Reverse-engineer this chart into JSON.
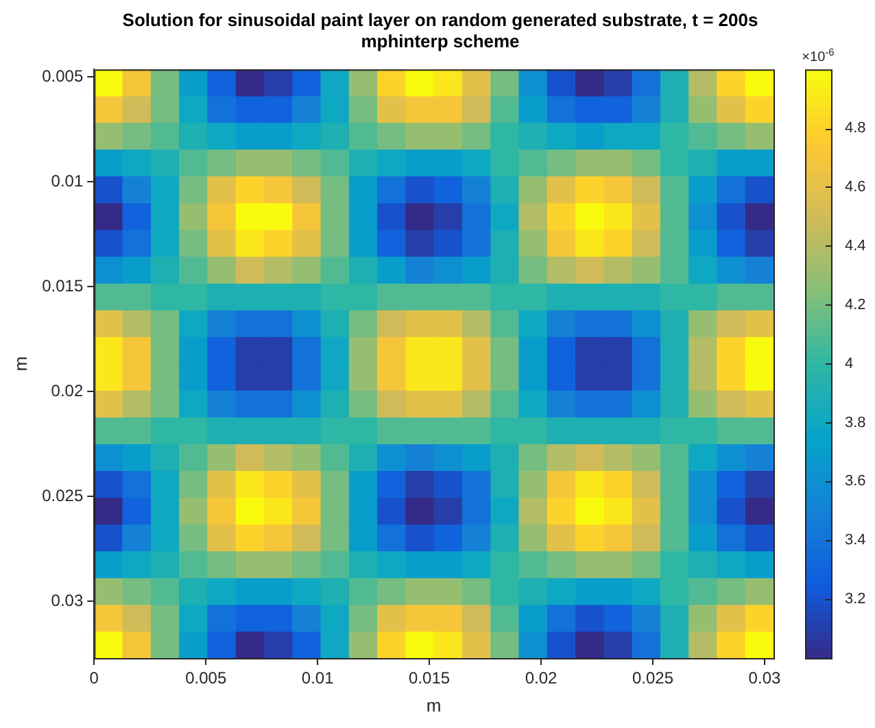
{
  "chart_data": {
    "type": "heatmap",
    "title": "Solution for sinusoidal paint layer on random generated substrate, t = 200s",
    "subtitle": "mphinterp scheme",
    "xlabel": "m",
    "ylabel": "m",
    "clabel": "×10$^{-6}$",
    "x": [
      0.00063,
      0.0019,
      0.00317,
      0.00443,
      0.0057,
      0.00697,
      0.00823,
      0.0095,
      0.01077,
      0.01203,
      0.0133,
      0.01457,
      0.01583,
      0.0171,
      0.01837,
      0.01963,
      0.0209,
      0.02217,
      0.02343,
      0.0247,
      0.02597,
      0.02723,
      0.0285,
      0.02977
    ],
    "y": [
      0.0053,
      0.00655,
      0.00783,
      0.0091,
      0.01038,
      0.01166,
      0.01293,
      0.01421,
      0.01549,
      0.01676,
      0.01804,
      0.01931,
      0.02059,
      0.02187,
      0.02314,
      0.02442,
      0.0257,
      0.02697,
      0.02825,
      0.02953,
      0.0308,
      0.03208
    ],
    "xlim": [
      0,
      0.0304
    ],
    "xticks": [
      0,
      0.005,
      0.01,
      0.015,
      0.02,
      0.025,
      0.03
    ],
    "ylim": [
      0.0327,
      0.00464
    ],
    "yticks": [
      0.005,
      0.01,
      0.015,
      0.02,
      0.025,
      0.03
    ],
    "clim": [
      3.0,
      5.0
    ],
    "cticks": [
      3.2,
      3.4,
      3.6,
      3.8,
      4,
      4.2,
      4.4,
      4.6,
      4.8
    ],
    "cells": [
      [
        5.0,
        4.7,
        4.2,
        3.7,
        3.3,
        3.0,
        3.1,
        3.3,
        3.8,
        4.3,
        4.8,
        5.0,
        4.9,
        4.6,
        4.2,
        3.6,
        3.2,
        3.0,
        3.1,
        3.4,
        3.9,
        4.4,
        4.8,
        5.0
      ],
      [
        4.7,
        4.5,
        4.2,
        3.8,
        3.4,
        3.3,
        3.3,
        3.5,
        3.8,
        4.2,
        4.6,
        4.7,
        4.7,
        4.5,
        4.1,
        3.7,
        3.4,
        3.3,
        3.3,
        3.5,
        3.9,
        4.3,
        4.6,
        4.8
      ],
      [
        4.3,
        4.2,
        4.1,
        3.9,
        3.8,
        3.7,
        3.7,
        3.8,
        3.9,
        4.1,
        4.2,
        4.3,
        4.3,
        4.2,
        4.0,
        3.9,
        3.8,
        3.7,
        3.8,
        3.8,
        4.0,
        4.1,
        4.2,
        4.3
      ],
      [
        3.7,
        3.8,
        3.9,
        4.1,
        4.2,
        4.3,
        4.3,
        4.2,
        4.1,
        3.9,
        3.8,
        3.7,
        3.7,
        3.8,
        4.0,
        4.1,
        4.2,
        4.3,
        4.3,
        4.2,
        4.0,
        3.9,
        3.7,
        3.7
      ],
      [
        3.2,
        3.5,
        3.8,
        4.2,
        4.6,
        4.8,
        4.7,
        4.5,
        4.2,
        3.7,
        3.4,
        3.2,
        3.3,
        3.5,
        3.9,
        4.3,
        4.6,
        4.8,
        4.7,
        4.5,
        4.1,
        3.7,
        3.4,
        3.2
      ],
      [
        3.0,
        3.3,
        3.8,
        4.3,
        4.7,
        5.0,
        5.0,
        4.7,
        4.2,
        3.7,
        3.2,
        3.0,
        3.1,
        3.4,
        3.8,
        4.4,
        4.8,
        5.0,
        4.9,
        4.6,
        4.1,
        3.6,
        3.2,
        3.0
      ],
      [
        3.2,
        3.4,
        3.8,
        4.2,
        4.6,
        4.9,
        4.8,
        4.6,
        4.2,
        3.7,
        3.3,
        3.1,
        3.2,
        3.4,
        3.9,
        4.3,
        4.7,
        4.9,
        4.8,
        4.5,
        4.1,
        3.7,
        3.3,
        3.1
      ],
      [
        3.6,
        3.7,
        3.9,
        4.1,
        4.3,
        4.5,
        4.4,
        4.3,
        4.1,
        3.9,
        3.7,
        3.5,
        3.6,
        3.7,
        3.9,
        4.2,
        4.4,
        4.5,
        4.4,
        4.3,
        4.1,
        3.8,
        3.6,
        3.5
      ],
      [
        4.1,
        4.1,
        4.0,
        4.0,
        3.9,
        3.9,
        3.9,
        3.9,
        4.0,
        4.0,
        4.1,
        4.1,
        4.1,
        4.1,
        4.0,
        4.0,
        3.9,
        3.9,
        3.9,
        3.9,
        4.0,
        4.0,
        4.1,
        4.1
      ],
      [
        4.6,
        4.4,
        4.2,
        3.8,
        3.5,
        3.4,
        3.4,
        3.6,
        3.9,
        4.2,
        4.5,
        4.6,
        4.6,
        4.4,
        4.1,
        3.8,
        3.5,
        3.4,
        3.4,
        3.6,
        3.9,
        4.3,
        4.5,
        4.6
      ],
      [
        4.9,
        4.7,
        4.2,
        3.7,
        3.3,
        3.1,
        3.1,
        3.4,
        3.8,
        4.3,
        4.7,
        4.9,
        4.9,
        4.6,
        4.2,
        3.7,
        3.3,
        3.1,
        3.1,
        3.4,
        3.9,
        4.4,
        4.8,
        5.0
      ],
      [
        4.9,
        4.7,
        4.2,
        3.7,
        3.3,
        3.1,
        3.1,
        3.4,
        3.8,
        4.3,
        4.7,
        4.9,
        4.9,
        4.6,
        4.2,
        3.7,
        3.3,
        3.1,
        3.1,
        3.4,
        3.9,
        4.4,
        4.8,
        5.0
      ],
      [
        4.6,
        4.4,
        4.2,
        3.8,
        3.5,
        3.4,
        3.4,
        3.6,
        3.9,
        4.2,
        4.5,
        4.6,
        4.6,
        4.4,
        4.1,
        3.8,
        3.5,
        3.4,
        3.4,
        3.6,
        3.9,
        4.3,
        4.5,
        4.6
      ],
      [
        4.1,
        4.1,
        4.0,
        4.0,
        3.9,
        3.9,
        3.9,
        3.9,
        4.0,
        4.0,
        4.1,
        4.1,
        4.1,
        4.1,
        4.0,
        4.0,
        3.9,
        3.9,
        3.9,
        3.9,
        4.0,
        4.0,
        4.1,
        4.1
      ],
      [
        3.6,
        3.7,
        3.9,
        4.1,
        4.3,
        4.5,
        4.4,
        4.3,
        4.1,
        3.9,
        3.6,
        3.5,
        3.6,
        3.7,
        3.9,
        4.2,
        4.4,
        4.5,
        4.4,
        4.3,
        4.1,
        3.8,
        3.6,
        3.5
      ],
      [
        3.2,
        3.4,
        3.8,
        4.2,
        4.6,
        4.9,
        4.8,
        4.6,
        4.2,
        3.7,
        3.3,
        3.1,
        3.2,
        3.4,
        3.9,
        4.3,
        4.7,
        4.9,
        4.8,
        4.5,
        4.1,
        3.6,
        3.3,
        3.1
      ],
      [
        3.0,
        3.3,
        3.8,
        4.3,
        4.7,
        5.0,
        4.9,
        4.7,
        4.2,
        3.7,
        3.2,
        3.0,
        3.1,
        3.4,
        3.8,
        4.4,
        4.8,
        5.0,
        4.9,
        4.6,
        4.1,
        3.6,
        3.2,
        3.0
      ],
      [
        3.2,
        3.5,
        3.8,
        4.2,
        4.6,
        4.8,
        4.7,
        4.5,
        4.2,
        3.7,
        3.4,
        3.2,
        3.3,
        3.5,
        3.9,
        4.3,
        4.6,
        4.8,
        4.7,
        4.5,
        4.1,
        3.7,
        3.4,
        3.2
      ],
      [
        3.7,
        3.8,
        3.9,
        4.1,
        4.2,
        4.3,
        4.3,
        4.2,
        4.1,
        3.9,
        3.8,
        3.7,
        3.7,
        3.8,
        4.0,
        4.1,
        4.2,
        4.3,
        4.3,
        4.2,
        4.0,
        3.9,
        3.8,
        3.7
      ],
      [
        4.3,
        4.2,
        4.1,
        3.9,
        3.8,
        3.7,
        3.7,
        3.8,
        3.9,
        4.1,
        4.2,
        4.3,
        4.3,
        4.2,
        4.0,
        3.9,
        3.8,
        3.7,
        3.7,
        3.8,
        4.0,
        4.1,
        4.2,
        4.3
      ],
      [
        4.7,
        4.5,
        4.2,
        3.8,
        3.4,
        3.3,
        3.3,
        3.5,
        3.8,
        4.2,
        4.6,
        4.7,
        4.7,
        4.5,
        4.1,
        3.7,
        3.4,
        3.2,
        3.3,
        3.5,
        3.9,
        4.3,
        4.6,
        4.8
      ],
      [
        5.0,
        4.7,
        4.2,
        3.7,
        3.3,
        3.0,
        3.1,
        3.3,
        3.8,
        4.3,
        4.8,
        5.0,
        4.9,
        4.6,
        4.2,
        3.6,
        3.2,
        3.0,
        3.1,
        3.4,
        3.9,
        4.4,
        4.8,
        5.0
      ]
    ]
  }
}
